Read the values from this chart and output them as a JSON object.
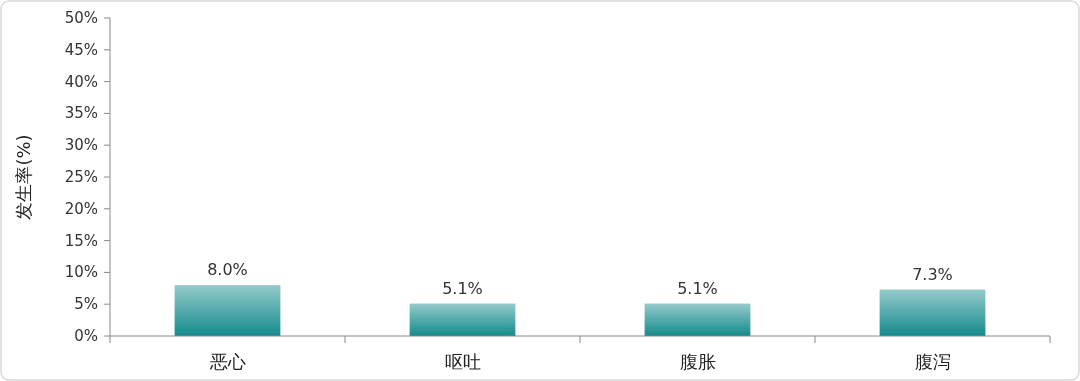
{
  "chart_data": {
    "type": "bar",
    "ylabel": "发生率(%)",
    "categories": [
      "恶心",
      "呕吐",
      "腹胀",
      "腹泻"
    ],
    "values": [
      8.0,
      5.1,
      5.1,
      7.3
    ],
    "value_labels": [
      "8.0%",
      "5.1%",
      "5.1%",
      "7.3%"
    ],
    "color": "#138a8c",
    "ylim": [
      0,
      50
    ],
    "yticks": [
      {
        "value": 0,
        "label": "0%"
      },
      {
        "value": 5,
        "label": "5%"
      },
      {
        "value": 10,
        "label": "10%"
      },
      {
        "value": 15,
        "label": "15%"
      },
      {
        "value": 20,
        "label": "20%"
      },
      {
        "value": 25,
        "label": "25%"
      },
      {
        "value": 30,
        "label": "30%"
      },
      {
        "value": 35,
        "label": "35%"
      },
      {
        "value": 40,
        "label": "40%"
      },
      {
        "value": 45,
        "label": "45%"
      },
      {
        "value": 50,
        "label": "50%"
      }
    ],
    "grid": false
  }
}
